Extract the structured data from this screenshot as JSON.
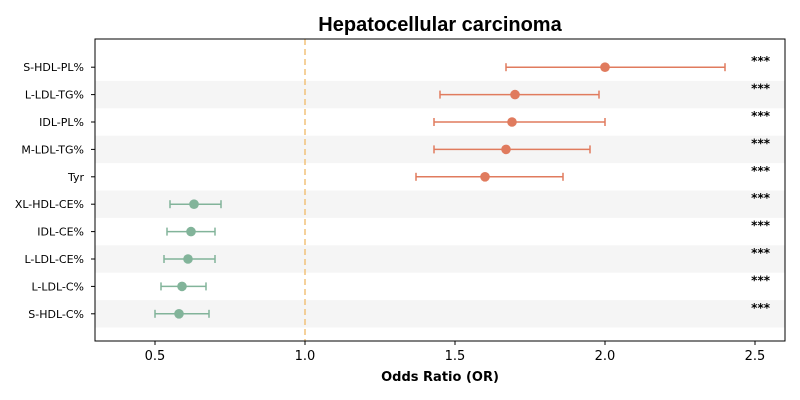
{
  "chart_data": {
    "type": "forest",
    "title": "Hepatocellular carcinoma",
    "xlabel": "Odds Ratio (OR)",
    "xlim": [
      0.3,
      2.6
    ],
    "xticks": [
      0.5,
      1.0,
      1.5,
      2.0,
      2.5
    ],
    "xtick_labels": [
      "0.5",
      "1.0",
      "1.5",
      "2.0",
      "2.5"
    ],
    "reference_line": 1.0,
    "row_shading": "alternating light gray",
    "colors": {
      "risk": "#e07b5e",
      "protective": "#82b49a",
      "reference": "#f2c27a",
      "shade": "#f5f5f5"
    },
    "rows": [
      {
        "label": "S-HDL-PL%",
        "or": 2.0,
        "lower": 1.67,
        "upper": 2.4,
        "sig": "***",
        "group": "risk"
      },
      {
        "label": "L-LDL-TG%",
        "or": 1.7,
        "lower": 1.45,
        "upper": 1.98,
        "sig": "***",
        "group": "risk"
      },
      {
        "label": "IDL-PL%",
        "or": 1.69,
        "lower": 1.43,
        "upper": 2.0,
        "sig": "***",
        "group": "risk"
      },
      {
        "label": "M-LDL-TG%",
        "or": 1.67,
        "lower": 1.43,
        "upper": 1.95,
        "sig": "***",
        "group": "risk"
      },
      {
        "label": "Tyr",
        "or": 1.6,
        "lower": 1.37,
        "upper": 1.86,
        "sig": "***",
        "group": "risk"
      },
      {
        "label": "XL-HDL-CE%",
        "or": 0.63,
        "lower": 0.55,
        "upper": 0.72,
        "sig": "***",
        "group": "protective"
      },
      {
        "label": "IDL-CE%",
        "or": 0.62,
        "lower": 0.54,
        "upper": 0.7,
        "sig": "***",
        "group": "protective"
      },
      {
        "label": "L-LDL-CE%",
        "or": 0.61,
        "lower": 0.53,
        "upper": 0.7,
        "sig": "***",
        "group": "protective"
      },
      {
        "label": "L-LDL-C%",
        "or": 0.59,
        "lower": 0.52,
        "upper": 0.67,
        "sig": "***",
        "group": "protective"
      },
      {
        "label": "S-HDL-C%",
        "or": 0.58,
        "lower": 0.5,
        "upper": 0.68,
        "sig": "***",
        "group": "protective"
      }
    ]
  }
}
